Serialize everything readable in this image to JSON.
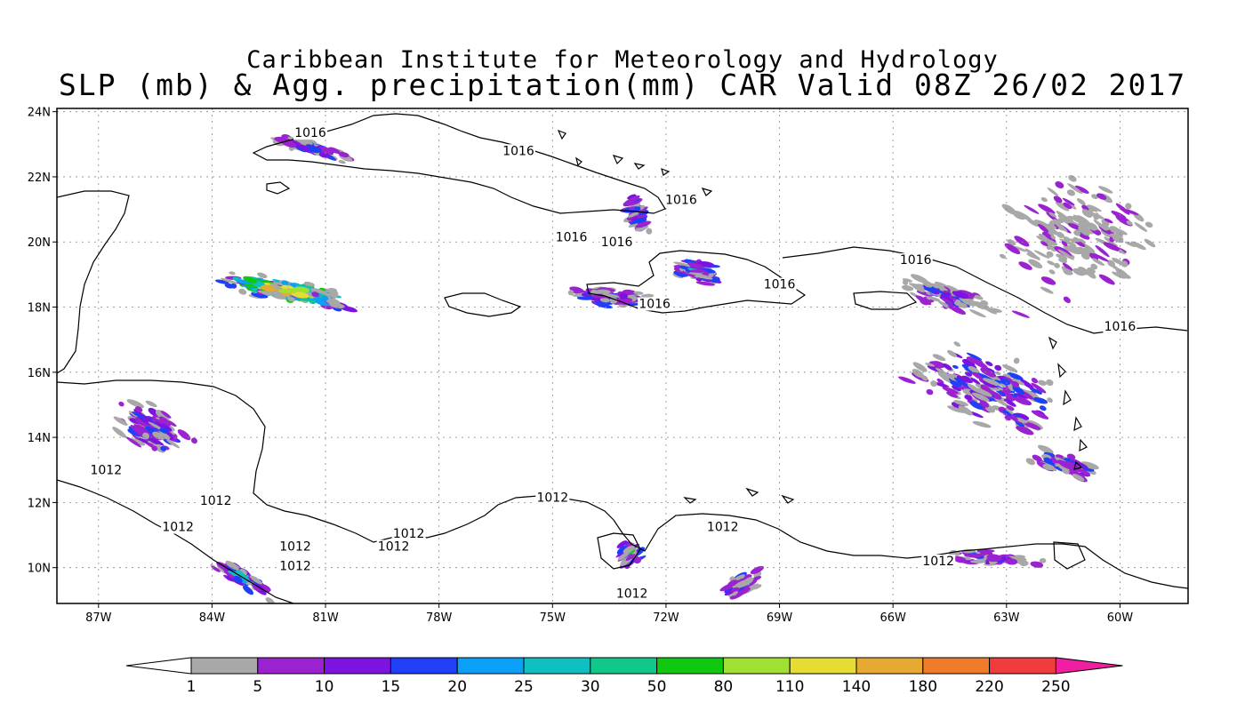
{
  "title": {
    "line1": "Caribbean Institute for Meteorology and Hydrology",
    "line2": "SLP (mb) & Agg. precipitation(mm) CAR Valid 08Z 26/02 2017"
  },
  "map": {
    "lon_range": [
      -88.1,
      -58.2
    ],
    "lat_range": [
      8.9,
      24.1
    ],
    "lon_ticks": [
      {
        "value": -87,
        "label": "87W"
      },
      {
        "value": -84,
        "label": "84W"
      },
      {
        "value": -81,
        "label": "81W"
      },
      {
        "value": -78,
        "label": "78W"
      },
      {
        "value": -75,
        "label": "75W"
      },
      {
        "value": -72,
        "label": "72W"
      },
      {
        "value": -69,
        "label": "69W"
      },
      {
        "value": -66,
        "label": "66W"
      },
      {
        "value": -63,
        "label": "63W"
      },
      {
        "value": -60,
        "label": "60W"
      }
    ],
    "lat_ticks": [
      {
        "value": 24,
        "label": "24N"
      },
      {
        "value": 22,
        "label": "22N"
      },
      {
        "value": 20,
        "label": "20N"
      },
      {
        "value": 18,
        "label": "18N"
      },
      {
        "value": 16,
        "label": "16N"
      },
      {
        "value": 14,
        "label": "14N"
      },
      {
        "value": 12,
        "label": "12N"
      },
      {
        "value": 10,
        "label": "10N"
      }
    ],
    "isobar_labels": [
      {
        "text": "1016",
        "lon": -81.4,
        "lat": 23.25
      },
      {
        "text": "1016",
        "lon": -75.9,
        "lat": 22.7
      },
      {
        "text": "1016",
        "lon": -71.6,
        "lat": 21.2
      },
      {
        "text": "1016",
        "lon": -74.5,
        "lat": 20.05
      },
      {
        "text": "1016",
        "lon": -73.3,
        "lat": 19.9
      },
      {
        "text": "1016",
        "lon": -69.0,
        "lat": 18.6
      },
      {
        "text": "1016",
        "lon": -72.3,
        "lat": 18.0
      },
      {
        "text": "1016",
        "lon": -65.4,
        "lat": 19.35
      },
      {
        "text": "1016",
        "lon": -60.0,
        "lat": 17.3
      },
      {
        "text": "1012",
        "lon": -86.8,
        "lat": 12.9
      },
      {
        "text": "1012",
        "lon": -83.9,
        "lat": 11.95
      },
      {
        "text": "1012",
        "lon": -84.9,
        "lat": 11.15
      },
      {
        "text": "1012",
        "lon": -81.8,
        "lat": 10.55
      },
      {
        "text": "1012",
        "lon": -81.8,
        "lat": 9.95
      },
      {
        "text": "1012",
        "lon": -78.8,
        "lat": 10.95
      },
      {
        "text": "1012",
        "lon": -79.2,
        "lat": 10.55
      },
      {
        "text": "1012",
        "lon": -75.0,
        "lat": 12.05
      },
      {
        "text": "1012",
        "lon": -70.5,
        "lat": 11.15
      },
      {
        "text": "1012",
        "lon": -64.8,
        "lat": 10.1
      },
      {
        "text": "1012",
        "lon": -72.9,
        "lat": 9.1
      }
    ],
    "precip_systems": [
      {
        "lon": -82.0,
        "lat": 18.5,
        "spread_lon": 2.4,
        "spread_lat": 0.45,
        "angle": -12,
        "intensity": 0.95,
        "n": 260
      },
      {
        "lon": -81.4,
        "lat": 22.9,
        "spread_lon": 1.6,
        "spread_lat": 0.25,
        "angle": -18,
        "intensity": 0.5,
        "n": 80
      },
      {
        "lon": -85.6,
        "lat": 14.3,
        "spread_lon": 1.4,
        "spread_lat": 0.9,
        "angle": -30,
        "intensity": 0.55,
        "n": 120
      },
      {
        "lon": -83.2,
        "lat": 9.7,
        "spread_lon": 1.2,
        "spread_lat": 0.35,
        "angle": -35,
        "intensity": 0.7,
        "n": 80
      },
      {
        "lon": -73.5,
        "lat": 18.3,
        "spread_lon": 1.4,
        "spread_lat": 0.4,
        "angle": -5,
        "intensity": 0.6,
        "n": 90
      },
      {
        "lon": -71.2,
        "lat": 19.1,
        "spread_lon": 0.9,
        "spread_lat": 0.5,
        "angle": -10,
        "intensity": 0.6,
        "n": 70
      },
      {
        "lon": -72.8,
        "lat": 20.9,
        "spread_lon": 0.35,
        "spread_lat": 1.0,
        "angle": 20,
        "intensity": 0.5,
        "n": 40
      },
      {
        "lon": -73.0,
        "lat": 10.4,
        "spread_lon": 0.5,
        "spread_lat": 0.6,
        "angle": 30,
        "intensity": 0.6,
        "n": 40
      },
      {
        "lon": -70.0,
        "lat": 9.5,
        "spread_lon": 0.8,
        "spread_lat": 0.4,
        "angle": 30,
        "intensity": 0.6,
        "n": 40
      },
      {
        "lon": -63.5,
        "lat": 15.5,
        "spread_lon": 2.8,
        "spread_lat": 1.4,
        "angle": -25,
        "intensity": 0.55,
        "n": 200
      },
      {
        "lon": -61.5,
        "lat": 13.2,
        "spread_lon": 1.3,
        "spread_lat": 0.5,
        "angle": -20,
        "intensity": 0.5,
        "n": 70
      },
      {
        "lon": -63.5,
        "lat": 10.3,
        "spread_lon": 2.0,
        "spread_lat": 0.3,
        "angle": -5,
        "intensity": 0.45,
        "n": 60
      },
      {
        "lon": -61.0,
        "lat": 20.3,
        "spread_lon": 2.8,
        "spread_lat": 2.5,
        "angle": -30,
        "intensity": 0.3,
        "n": 180
      },
      {
        "lon": -64.5,
        "lat": 18.3,
        "spread_lon": 2.2,
        "spread_lat": 0.6,
        "angle": -20,
        "intensity": 0.4,
        "n": 90
      }
    ],
    "legend_markers": []
  },
  "colorbar": {
    "labels": [
      "1",
      "5",
      "10",
      "15",
      "20",
      "25",
      "30",
      "50",
      "80",
      "110",
      "140",
      "180",
      "220",
      "250"
    ],
    "colors": [
      "#ffffff",
      "#a8a8a8",
      "#9b22d0",
      "#7c13e0",
      "#2040f8",
      "#0aa0f8",
      "#10c0c0",
      "#10c88a",
      "#10c810",
      "#a0e032",
      "#e6dc32",
      "#e6aa32",
      "#f07c2a",
      "#f03c3c",
      "#f01ea0"
    ]
  }
}
